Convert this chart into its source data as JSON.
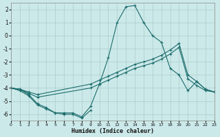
{
  "xlabel": "Humidex (Indice chaleur)",
  "bg_color": "#cce9e9",
  "line_color": "#1a6b6b",
  "grid_color": "#aacccc",
  "xlim": [
    0,
    23
  ],
  "ylim": [
    -6.5,
    2.5
  ],
  "xticks": [
    0,
    1,
    2,
    3,
    4,
    5,
    6,
    7,
    8,
    9,
    10,
    11,
    12,
    13,
    14,
    15,
    16,
    17,
    18,
    19,
    20,
    21,
    22,
    23
  ],
  "yticks": [
    -6,
    -5,
    -4,
    -3,
    -2,
    -1,
    0,
    1,
    2
  ],
  "curves": [
    {
      "x": [
        0,
        1,
        2,
        3,
        4,
        5,
        6,
        7,
        8,
        9,
        10,
        11,
        12,
        13,
        14,
        15,
        16,
        17,
        18,
        19,
        20,
        21,
        22,
        23
      ],
      "y": [
        -4.0,
        -4.1,
        -4.5,
        -5.2,
        -5.5,
        -5.9,
        -5.9,
        -5.9,
        -6.2,
        -5.4,
        -3.7,
        -1.7,
        1.0,
        2.2,
        2.3,
        1.0,
        0.0,
        -0.5,
        -2.5,
        -3.0,
        -4.2,
        -3.5,
        -4.1,
        -4.3
      ]
    },
    {
      "x": [
        0,
        1,
        2,
        3,
        9,
        10,
        11,
        12,
        13,
        14,
        15,
        16,
        17,
        18,
        19,
        20,
        21,
        22,
        23
      ],
      "y": [
        -4.0,
        -4.1,
        -4.3,
        -4.5,
        -3.7,
        -3.4,
        -3.1,
        -2.8,
        -2.5,
        -2.2,
        -2.0,
        -1.8,
        -1.5,
        -1.1,
        -0.6,
        -3.0,
        -3.5,
        -4.1,
        -4.3
      ]
    },
    {
      "x": [
        0,
        1,
        2,
        3,
        9,
        10,
        11,
        12,
        13,
        14,
        15,
        16,
        17,
        18,
        19,
        20,
        21,
        22,
        23
      ],
      "y": [
        -4.0,
        -4.1,
        -4.4,
        -4.7,
        -4.0,
        -3.7,
        -3.4,
        -3.1,
        -2.8,
        -2.5,
        -2.3,
        -2.1,
        -1.8,
        -1.4,
        -0.9,
        -3.3,
        -3.8,
        -4.2,
        -4.3
      ]
    },
    {
      "x": [
        0,
        1,
        2,
        3,
        4,
        5,
        6,
        7,
        8,
        9
      ],
      "y": [
        -4.0,
        -4.2,
        -4.6,
        -5.3,
        -5.6,
        -5.9,
        -6.0,
        -6.0,
        -6.3,
        -5.7
      ]
    }
  ]
}
